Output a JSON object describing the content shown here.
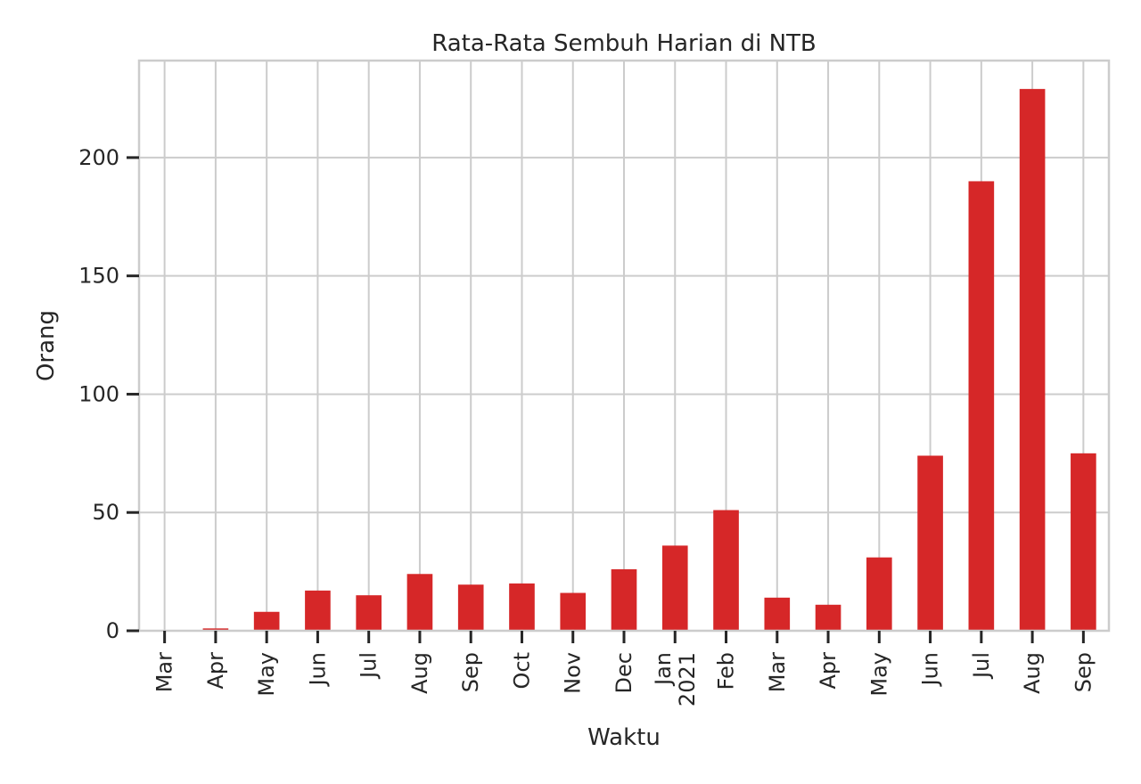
{
  "chart_data": {
    "type": "bar",
    "title": "Rata-Rata Sembuh Harian di NTB",
    "xlabel": "Waktu",
    "ylabel": "Orang",
    "categories": [
      "Mar",
      "Apr",
      "May",
      "Jun",
      "Jul",
      "Aug",
      "Sep",
      "Oct",
      "Nov",
      "Dec",
      "Jan\n2021",
      "Feb",
      "Mar",
      "Apr",
      "May",
      "Jun",
      "Jul",
      "Aug",
      "Sep"
    ],
    "values": [
      0,
      1,
      8,
      17,
      15,
      24,
      19.5,
      20,
      16,
      26,
      36,
      51,
      14,
      11,
      31,
      74,
      190,
      229,
      75
    ],
    "ylim": [
      0,
      241
    ],
    "yticks": [
      0,
      50,
      100,
      150,
      200
    ],
    "grid": true,
    "bar_color": "#d62728",
    "grid_color": "#cccccc",
    "spine_color": "#cccccc"
  }
}
